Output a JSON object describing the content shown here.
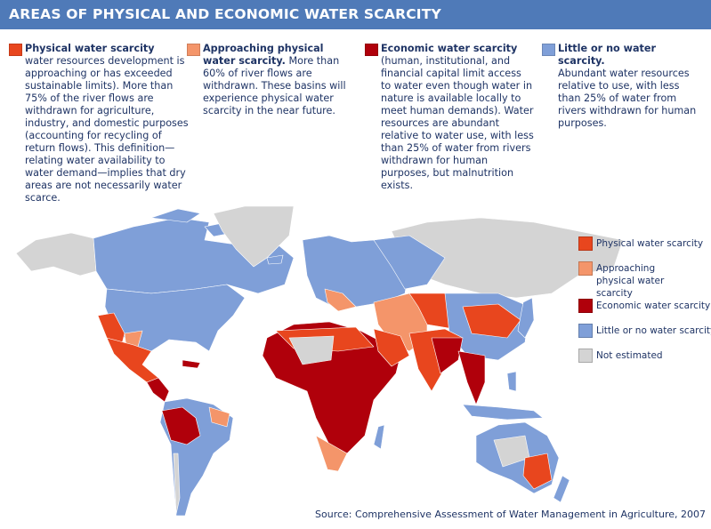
{
  "title": "AREAS OF PHYSICAL AND ECONOMIC WATER SCARCITY",
  "colors": {
    "physical": "#e8461e",
    "approaching": "#f4956a",
    "economic": "#b0000b",
    "little": "#7f9fd8",
    "not_estimated": "#d4d4d4",
    "header": "#4f7ab8",
    "text": "#1f3465"
  },
  "definitions": [
    {
      "key": "physical",
      "heading": "Physical water scarcity",
      "body": "water resources development is approaching or has exceeded sustainable limits). More than 75% of the river flows are withdrawn for agriculture, industry, and domestic purposes (accounting for recycling of return flows). This definition—relating water availability to water demand—implies that dry areas are not necessarily water scarce."
    },
    {
      "key": "approaching",
      "heading": "Approaching physical water scarcity.",
      "body": "More than 60% of river flows are withdrawn. These basins will experience physical water scarcity in the near future."
    },
    {
      "key": "economic",
      "heading": "Economic water scarcity",
      "body": "(human, institutional, and financial capital limit access to water even though water in nature is available locally to meet human demands). Water resources are abundant relative to water use, with less than 25% of water from rivers withdrawn for human purposes, but malnutrition exists."
    },
    {
      "key": "little",
      "heading": "Little or no water scarcity.",
      "body": "Abundant water resources relative to use, with less than 25% of water from rivers withdrawn for human purposes."
    }
  ],
  "legend": [
    {
      "key": "physical",
      "label": "Physical water scarcity"
    },
    {
      "key": "approaching",
      "label": "Approaching physical water scarcity"
    },
    {
      "key": "economic",
      "label": "Economic water scarcity"
    },
    {
      "key": "little",
      "label": "Little or no water scarcity"
    },
    {
      "key": "not_estimated",
      "label": "Not estimated"
    }
  ],
  "source": "Source:  Comprehensive Assessment of Water Management in Agriculture, 2007"
}
